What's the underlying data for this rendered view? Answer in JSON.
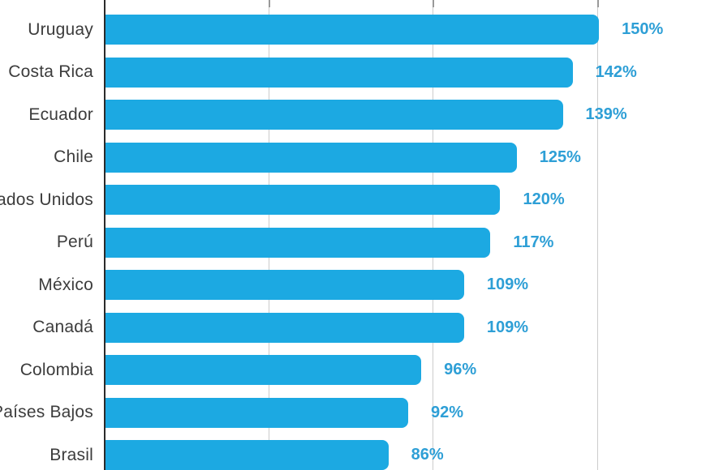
{
  "chart_data": {
    "type": "bar",
    "orientation": "horizontal",
    "title": "",
    "xlabel": "",
    "ylabel": "",
    "unit": "%",
    "categories": [
      "Uruguay",
      "Costa Rica",
      "Ecuador",
      "Chile",
      "Estados Unidos",
      "Perú",
      "México",
      "Canadá",
      "Colombia",
      "Países Bajos",
      "Brasil"
    ],
    "values": [
      150,
      142,
      139,
      125,
      120,
      117,
      109,
      109,
      96,
      92,
      86
    ],
    "value_labels": [
      "150%",
      "142%",
      "139%",
      "125%",
      "120%",
      "117%",
      "109%",
      "109%",
      "96%",
      "92%",
      "86%"
    ],
    "xlim": [
      0,
      183
    ],
    "grid": true,
    "gridline_values": [
      50,
      100,
      150
    ],
    "legend": "none"
  },
  "colors": {
    "bar": "#1ca9e2",
    "value_label": "#2e9fd6",
    "category_label": "#3c3c3c",
    "gridline": "#cccccc",
    "grid_tick": "#999999",
    "axis_line": "#2b2b2b",
    "background": "#ffffff"
  }
}
